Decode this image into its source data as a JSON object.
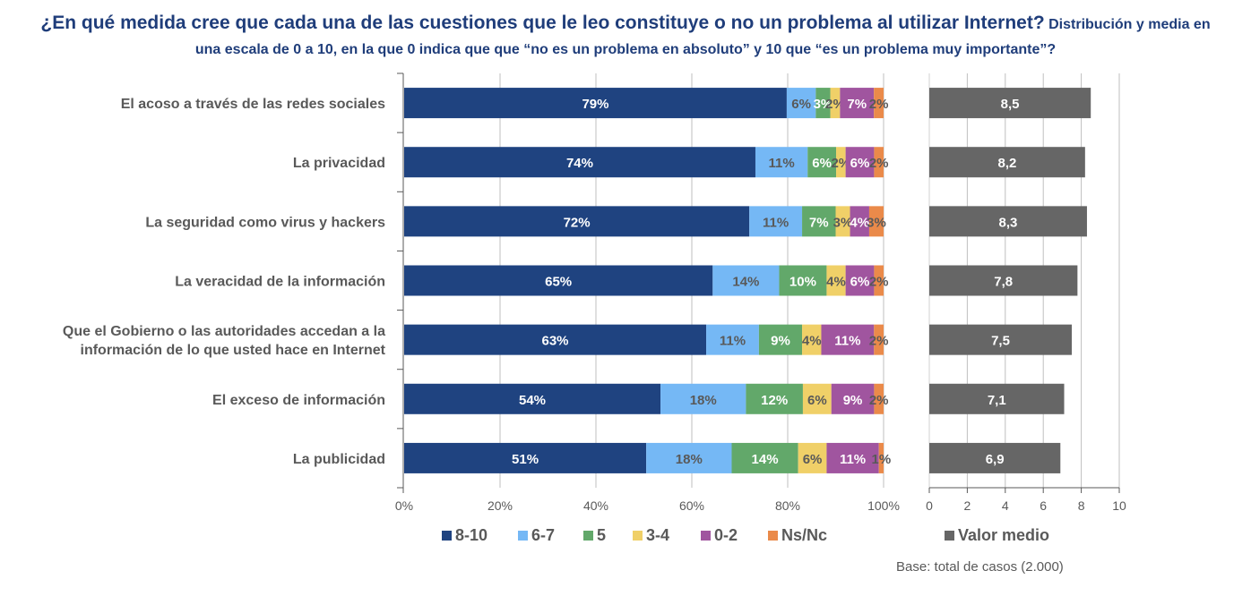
{
  "title": {
    "main": "¿En qué medida cree que cada una de las cuestiones que le leo constituye o no un problema al utilizar Internet?",
    "sub_line1": "Distribución y media en",
    "sub_line2": "una escala de 0 a 10, en la que 0 indica que que “no es un problema en absoluto” y 10 que “es un problema muy importante”?"
  },
  "base_note": "Base: total de casos  (2.000)",
  "chart_data": [
    {
      "type": "bar",
      "orientation": "horizontal",
      "stacked": "percent",
      "categories": [
        [
          "El acoso a través de las redes sociales"
        ],
        [
          "La privacidad"
        ],
        [
          "La seguridad como virus y hackers"
        ],
        [
          "La veracidad de la información"
        ],
        [
          "Que el Gobierno o las autoridades accedan a la",
          "información de lo que usted hace en Internet"
        ],
        [
          "El exceso de información"
        ],
        [
          "La publicidad"
        ]
      ],
      "series": [
        {
          "name": "8-10",
          "color": "#1f4380",
          "label_color": "#ffffff",
          "values": [
            79,
            74,
            72,
            65,
            63,
            54,
            51
          ]
        },
        {
          "name": "6-7",
          "color": "#75b8f5",
          "label_color": "#595959",
          "values": [
            6,
            11,
            11,
            14,
            11,
            18,
            18
          ]
        },
        {
          "name": "5",
          "color": "#62a86a",
          "label_color": "#ffffff",
          "values": [
            3,
            6,
            7,
            10,
            9,
            12,
            14
          ]
        },
        {
          "name": "3-4",
          "color": "#f0d068",
          "label_color": "#595959",
          "values": [
            2,
            2,
            3,
            4,
            4,
            6,
            6
          ]
        },
        {
          "name": "0-2",
          "color": "#a0559f",
          "label_color": "#ffffff",
          "values": [
            7,
            6,
            4,
            6,
            11,
            9,
            11
          ]
        },
        {
          "name": "Ns/Nc",
          "color": "#ea8a4a",
          "label_color": "#595959",
          "values": [
            2,
            2,
            3,
            2,
            2,
            2,
            1
          ]
        }
      ],
      "xaxis": {
        "ticks": [
          "0%",
          "20%",
          "40%",
          "60%",
          "80%",
          "100%"
        ],
        "range": [
          0,
          100
        ],
        "grid": true
      },
      "legend": {
        "position": "bottom",
        "items": [
          "8-10",
          "6-7",
          "5",
          "3-4",
          "0-2",
          "Ns/Nc"
        ]
      }
    },
    {
      "type": "bar",
      "orientation": "horizontal",
      "series": [
        {
          "name": "Valor medio",
          "color": "#666666",
          "label_color": "#ffffff",
          "values": [
            8.5,
            8.2,
            8.3,
            7.8,
            7.5,
            7.1,
            6.9
          ],
          "labels": [
            "8,5",
            "8,2",
            "8,3",
            "7,8",
            "7,5",
            "7,1",
            "6,9"
          ]
        }
      ],
      "xaxis": {
        "ticks": [
          "0",
          "2",
          "4",
          "6",
          "8",
          "10"
        ],
        "range": [
          0,
          10
        ],
        "grid": true
      },
      "legend": {
        "position": "bottom",
        "items": [
          "Valor medio"
        ]
      }
    }
  ]
}
